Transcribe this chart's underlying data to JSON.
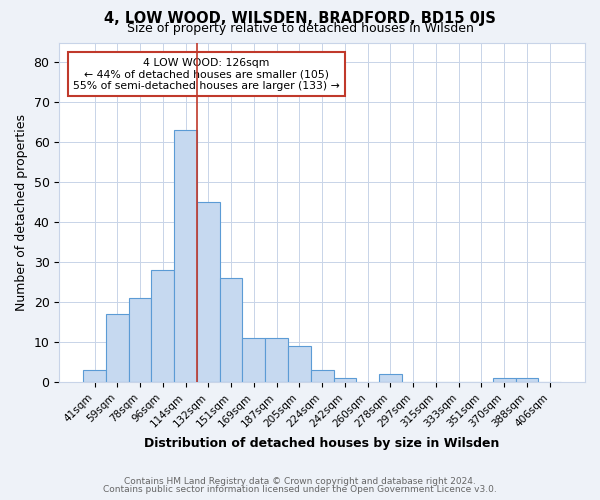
{
  "title": "4, LOW WOOD, WILSDEN, BRADFORD, BD15 0JS",
  "subtitle": "Size of property relative to detached houses in Wilsden",
  "xlabel": "Distribution of detached houses by size in Wilsden",
  "ylabel": "Number of detached properties",
  "footnote1": "Contains HM Land Registry data © Crown copyright and database right 2024.",
  "footnote2": "Contains public sector information licensed under the Open Government Licence v3.0.",
  "bar_labels": [
    "41sqm",
    "59sqm",
    "78sqm",
    "96sqm",
    "114sqm",
    "132sqm",
    "151sqm",
    "169sqm",
    "187sqm",
    "205sqm",
    "224sqm",
    "242sqm",
    "260sqm",
    "278sqm",
    "297sqm",
    "315sqm",
    "333sqm",
    "351sqm",
    "370sqm",
    "388sqm",
    "406sqm"
  ],
  "bar_values": [
    3,
    17,
    21,
    28,
    63,
    45,
    26,
    11,
    11,
    9,
    3,
    1,
    0,
    2,
    0,
    0,
    0,
    0,
    1,
    1,
    0
  ],
  "bar_color": "#c6d9f0",
  "bar_edge_color": "#5b9bd5",
  "vline_x": 4.5,
  "vline_color": "#c0392b",
  "annotation_text": "4 LOW WOOD: 126sqm\n← 44% of detached houses are smaller (105)\n55% of semi-detached houses are larger (133) →",
  "annotation_box_color": "white",
  "annotation_box_edge_color": "#c0392b",
  "ylim": [
    0,
    85
  ],
  "yticks": [
    0,
    10,
    20,
    30,
    40,
    50,
    60,
    70,
    80
  ],
  "bg_color": "#eef2f8",
  "plot_bg_color": "white",
  "grid_color": "#c8d4e8"
}
